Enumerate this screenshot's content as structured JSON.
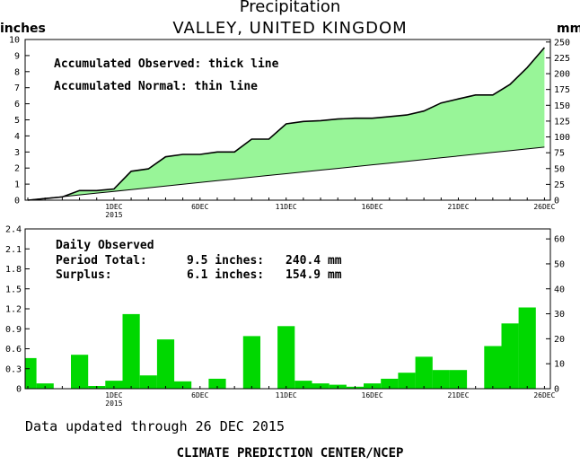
{
  "title": "Precipitation",
  "subtitle": "VALLEY, UNITED KINGDOM",
  "units": {
    "left": "inches",
    "right": "mm"
  },
  "footer": {
    "updated": "Data updated through 26 DEC 2015",
    "credit": "CLIMATE PREDICTION CENTER/NCEP"
  },
  "colors": {
    "fill": "#98f598",
    "bars": "#00d800",
    "line": "#000000"
  },
  "chart_data": [
    {
      "type": "area",
      "x_start": "2015-11-26",
      "x_end": "2015-12-26",
      "x": [
        "26NOV",
        "27NOV",
        "28NOV",
        "29NOV",
        "30NOV",
        "1DEC",
        "2DEC",
        "3DEC",
        "4DEC",
        "5DEC",
        "6DEC",
        "7DEC",
        "8DEC",
        "9DEC",
        "10DEC",
        "11DEC",
        "12DEC",
        "13DEC",
        "14DEC",
        "15DEC",
        "16DEC",
        "17DEC",
        "18DEC",
        "19DEC",
        "20DEC",
        "21DEC",
        "22DEC",
        "23DEC",
        "24DEC",
        "25DEC",
        "26DEC"
      ],
      "xtick_labels": [
        "1DEC\n2015",
        "6DEC",
        "11DEC",
        "16DEC",
        "21DEC",
        "26DEC"
      ],
      "annotations": [
        "Accumulated Observed: thick line",
        "Accumulated Normal: thin line"
      ],
      "series": [
        {
          "name": "Accumulated Observed",
          "values": [
            0.0,
            0.1,
            0.2,
            0.6,
            0.6,
            0.7,
            1.8,
            1.95,
            2.7,
            2.85,
            2.85,
            3.0,
            3.0,
            3.8,
            3.8,
            4.75,
            4.9,
            4.95,
            5.05,
            5.1,
            5.1,
            5.2,
            5.3,
            5.55,
            6.05,
            6.3,
            6.55,
            6.55,
            7.2,
            8.25,
            9.5
          ]
        },
        {
          "name": "Accumulated Normal",
          "values": [
            0.0,
            0.11,
            0.22,
            0.33,
            0.44,
            0.55,
            0.66,
            0.77,
            0.88,
            0.99,
            1.1,
            1.21,
            1.32,
            1.43,
            1.54,
            1.65,
            1.76,
            1.87,
            1.98,
            2.09,
            2.2,
            2.31,
            2.42,
            2.53,
            2.64,
            2.75,
            2.86,
            2.97,
            3.08,
            3.19,
            3.3
          ]
        }
      ],
      "ylim_inches": [
        0,
        10
      ],
      "yticks_inches": [
        "0",
        "1",
        "2",
        "3",
        "4",
        "5",
        "6",
        "7",
        "8",
        "9",
        "10"
      ],
      "ylim_mm": [
        0,
        254
      ],
      "yticks_mm": [
        "0",
        "25",
        "50",
        "75",
        "100",
        "125",
        "150",
        "175",
        "200",
        "225",
        "250"
      ]
    },
    {
      "type": "bar",
      "x": [
        "26NOV",
        "27NOV",
        "28NOV",
        "29NOV",
        "30NOV",
        "1DEC",
        "2DEC",
        "3DEC",
        "4DEC",
        "5DEC",
        "6DEC",
        "7DEC",
        "8DEC",
        "9DEC",
        "10DEC",
        "11DEC",
        "12DEC",
        "13DEC",
        "14DEC",
        "15DEC",
        "16DEC",
        "17DEC",
        "18DEC",
        "19DEC",
        "20DEC",
        "21DEC",
        "22DEC",
        "23DEC",
        "24DEC",
        "25DEC",
        "26DEC"
      ],
      "xtick_labels": [
        "1DEC\n2015",
        "6DEC",
        "11DEC",
        "16DEC",
        "21DEC",
        "26DEC"
      ],
      "series": [
        {
          "name": "Daily Observed",
          "values": [
            0.46,
            0.08,
            0.0,
            0.51,
            0.04,
            0.12,
            1.12,
            0.2,
            0.74,
            0.11,
            0.0,
            0.15,
            0.0,
            0.79,
            0.0,
            0.94,
            0.12,
            0.08,
            0.06,
            0.03,
            0.08,
            0.15,
            0.24,
            0.48,
            0.28,
            0.28,
            0.0,
            0.64,
            0.98,
            1.22,
            0.0
          ]
        }
      ],
      "annotation_label": "Daily Observed",
      "period_total": {
        "label": "Period Total:",
        "inches": "9.5 inches:",
        "mm": "240.4 mm"
      },
      "surplus": {
        "label": "Surplus:",
        "inches": "6.1 inches:",
        "mm": "154.9 mm"
      },
      "ylim_inches": [
        0,
        2.4
      ],
      "yticks_inches": [
        "0",
        "0.3",
        "0.6",
        "0.9",
        "1.2",
        "1.5",
        "1.8",
        "2.1",
        "2.4"
      ],
      "ylim_mm": [
        0,
        64
      ],
      "yticks_mm": [
        "0",
        "10",
        "20",
        "30",
        "40",
        "50",
        "60"
      ]
    }
  ]
}
